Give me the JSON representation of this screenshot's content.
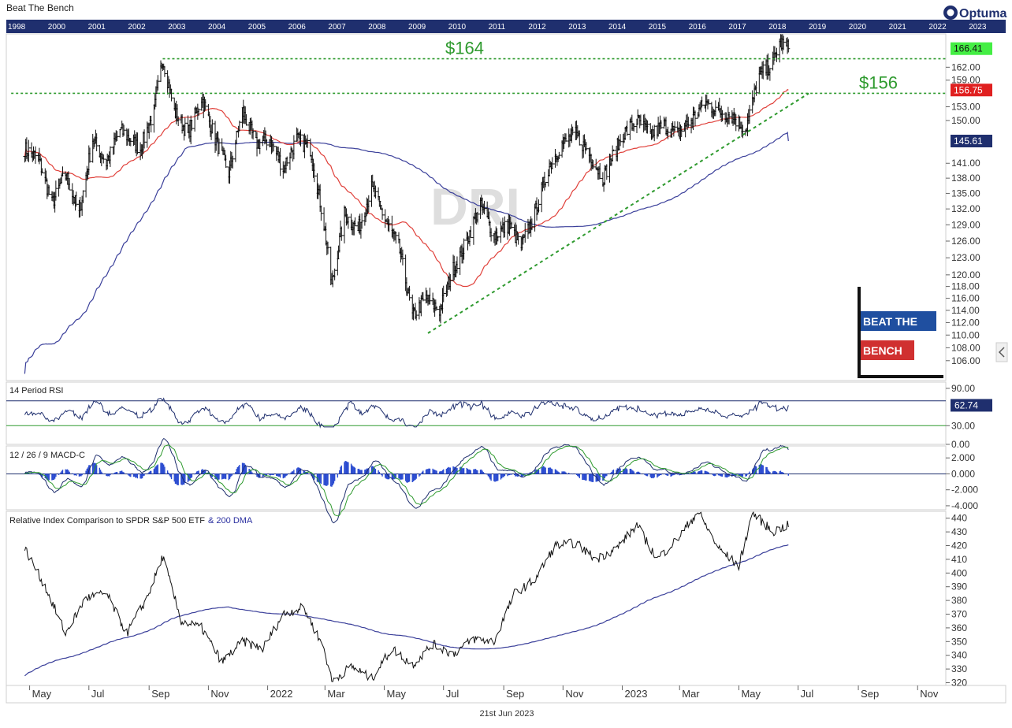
{
  "header": {
    "title": "Beat The Bench",
    "logo_text": "Optuma",
    "date_label": "21st Jun 2023"
  },
  "timeline": {
    "years": [
      "1998",
      "2000",
      "2001",
      "2002",
      "2003",
      "2004",
      "2005",
      "2006",
      "2007",
      "2008",
      "2009",
      "2010",
      "2011",
      "2012",
      "2013",
      "2014",
      "2015",
      "2016",
      "2017",
      "2018",
      "2019",
      "2020",
      "2021",
      "2022",
      "2023"
    ]
  },
  "watermark": {
    "symbol": "DRI",
    "badge_line1": "BEAT THE",
    "badge_line2": "BENCH"
  },
  "colors": {
    "navy": "#1f2f6e",
    "price": "#111111",
    "ma50": "#e0403a",
    "ma200": "#3a3f9a",
    "support": "#2e9a2e",
    "last_price_tag": "#44ee44",
    "ma50_tag": "#e02020",
    "ma200_tag": "#1f2f6e",
    "macd_signal": "#2e9a2e",
    "hist": "#2a4bd0"
  },
  "chart_data": [
    {
      "type": "candlestick",
      "title": "DRI",
      "x_labels": [
        "May",
        "Jul",
        "Sep",
        "Nov",
        "2022",
        "Mar",
        "May",
        "Jul",
        "Sep",
        "Nov",
        "2023",
        "Mar",
        "May",
        "Jul",
        "Sep",
        "Nov"
      ],
      "y_ticks": [
        106,
        108,
        110,
        112,
        114,
        116,
        118,
        120,
        123,
        126,
        129,
        132,
        135,
        138,
        141,
        145.61,
        150,
        153,
        156.75,
        159,
        162,
        166.41
      ],
      "ylim": [
        103,
        170
      ],
      "y_scale": "log",
      "anchors": [
        {
          "date": "2021-04-26",
          "close": 144
        },
        {
          "date": "2021-05-10",
          "close": 142
        },
        {
          "date": "2021-05-24",
          "close": 133
        },
        {
          "date": "2021-06-07",
          "close": 139
        },
        {
          "date": "2021-06-21",
          "close": 131
        },
        {
          "date": "2021-07-05",
          "close": 146
        },
        {
          "date": "2021-07-19",
          "close": 141
        },
        {
          "date": "2021-08-02",
          "close": 148
        },
        {
          "date": "2021-08-23",
          "close": 144
        },
        {
          "date": "2021-09-06",
          "close": 152
        },
        {
          "date": "2021-09-15",
          "close": 164
        },
        {
          "date": "2021-09-27",
          "close": 152
        },
        {
          "date": "2021-10-11",
          "close": 147
        },
        {
          "date": "2021-10-25",
          "close": 155
        },
        {
          "date": "2021-11-08",
          "close": 146
        },
        {
          "date": "2021-11-22",
          "close": 139
        },
        {
          "date": "2021-12-06",
          "close": 152
        },
        {
          "date": "2021-12-20",
          "close": 145
        },
        {
          "date": "2022-01-03",
          "close": 146
        },
        {
          "date": "2022-01-17",
          "close": 140
        },
        {
          "date": "2022-01-31",
          "close": 146
        },
        {
          "date": "2022-02-14",
          "close": 144
        },
        {
          "date": "2022-02-28",
          "close": 129
        },
        {
          "date": "2022-03-08",
          "close": 118
        },
        {
          "date": "2022-03-21",
          "close": 131
        },
        {
          "date": "2022-04-04",
          "close": 128
        },
        {
          "date": "2022-04-18",
          "close": 136
        },
        {
          "date": "2022-05-02",
          "close": 130
        },
        {
          "date": "2022-05-16",
          "close": 125
        },
        {
          "date": "2022-05-30",
          "close": 113
        },
        {
          "date": "2022-06-13",
          "close": 116
        },
        {
          "date": "2022-06-27",
          "close": 114
        },
        {
          "date": "2022-07-11",
          "close": 121
        },
        {
          "date": "2022-07-25",
          "close": 126
        },
        {
          "date": "2022-08-08",
          "close": 133
        },
        {
          "date": "2022-08-22",
          "close": 127
        },
        {
          "date": "2022-09-06",
          "close": 129
        },
        {
          "date": "2022-09-19",
          "close": 125
        },
        {
          "date": "2022-10-03",
          "close": 131
        },
        {
          "date": "2022-10-17",
          "close": 140
        },
        {
          "date": "2022-10-31",
          "close": 145
        },
        {
          "date": "2022-11-14",
          "close": 147
        },
        {
          "date": "2022-11-28",
          "close": 143
        },
        {
          "date": "2022-12-12",
          "close": 138
        },
        {
          "date": "2023-01-02",
          "close": 147
        },
        {
          "date": "2023-01-16",
          "close": 150
        },
        {
          "date": "2023-01-30",
          "close": 147
        },
        {
          "date": "2023-02-13",
          "close": 149
        },
        {
          "date": "2023-02-27",
          "close": 147
        },
        {
          "date": "2023-03-13",
          "close": 150
        },
        {
          "date": "2023-03-27",
          "close": 154
        },
        {
          "date": "2023-04-10",
          "close": 152
        },
        {
          "date": "2023-04-24",
          "close": 151
        },
        {
          "date": "2023-05-08",
          "close": 148
        },
        {
          "date": "2023-05-22",
          "close": 160
        },
        {
          "date": "2023-06-05",
          "close": 163
        },
        {
          "date": "2023-06-12",
          "close": 168
        },
        {
          "date": "2023-06-21",
          "close": 166.41
        }
      ],
      "last_price": 166.41,
      "ma50": {
        "label": "156.75",
        "value": 156.75
      },
      "ma200": {
        "label": "145.61",
        "value": 145.61
      },
      "levels": [
        {
          "label": "$164",
          "value": 164,
          "from": "2021-09-15"
        },
        {
          "label": "$156",
          "value": 156,
          "from": "2021-04-12"
        }
      ],
      "trendline": {
        "from_date": "2022-06-15",
        "from_value": 110.3,
        "to_date": "2023-07-12",
        "to_value": 156.0
      }
    },
    {
      "type": "line",
      "title": "14 Period RSI",
      "y_ticks": [
        90,
        30,
        0
      ],
      "ylim": [
        0,
        100
      ],
      "bands": [
        70,
        30
      ],
      "last_value": 62.74,
      "last_label": "62.74"
    },
    {
      "type": "bar",
      "title": "12 / 26 / 9 MACD-C",
      "y_ticks": [
        2,
        0,
        -2,
        -4
      ],
      "y_tick_labels": [
        "2.000",
        "0.000",
        "-2.000",
        "-4.000"
      ],
      "ylim": [
        -4.5,
        3.5
      ]
    },
    {
      "type": "line",
      "title": "Relative Index Comparison to SPDR S&P 500 ETF",
      "title_suffix": "& 200 DMA",
      "y_ticks": [
        320,
        330,
        340,
        350,
        360,
        370,
        380,
        390,
        400,
        410,
        420,
        430,
        440
      ],
      "ylim": [
        318,
        445
      ],
      "anchors": [
        {
          "date": "2021-04-26",
          "value": 418
        },
        {
          "date": "2021-05-17",
          "value": 390
        },
        {
          "date": "2021-06-07",
          "value": 356
        },
        {
          "date": "2021-06-28",
          "value": 382
        },
        {
          "date": "2021-07-19",
          "value": 385
        },
        {
          "date": "2021-08-09",
          "value": 356
        },
        {
          "date": "2021-08-30",
          "value": 382
        },
        {
          "date": "2021-09-15",
          "value": 412
        },
        {
          "date": "2021-10-04",
          "value": 365
        },
        {
          "date": "2021-10-25",
          "value": 360
        },
        {
          "date": "2021-11-15",
          "value": 335
        },
        {
          "date": "2021-12-06",
          "value": 350
        },
        {
          "date": "2021-12-27",
          "value": 345
        },
        {
          "date": "2022-01-17",
          "value": 370
        },
        {
          "date": "2022-02-07",
          "value": 375
        },
        {
          "date": "2022-02-28",
          "value": 345
        },
        {
          "date": "2022-03-08",
          "value": 321
        },
        {
          "date": "2022-03-28",
          "value": 332
        },
        {
          "date": "2022-04-18",
          "value": 323
        },
        {
          "date": "2022-05-09",
          "value": 345
        },
        {
          "date": "2022-05-30",
          "value": 333
        },
        {
          "date": "2022-06-20",
          "value": 348
        },
        {
          "date": "2022-07-11",
          "value": 341
        },
        {
          "date": "2022-08-01",
          "value": 352
        },
        {
          "date": "2022-08-22",
          "value": 350
        },
        {
          "date": "2022-09-12",
          "value": 385
        },
        {
          "date": "2022-10-03",
          "value": 395
        },
        {
          "date": "2022-10-24",
          "value": 420
        },
        {
          "date": "2022-11-14",
          "value": 422
        },
        {
          "date": "2022-12-05",
          "value": 410
        },
        {
          "date": "2022-12-26",
          "value": 418
        },
        {
          "date": "2023-01-16",
          "value": 435
        },
        {
          "date": "2023-02-06",
          "value": 410
        },
        {
          "date": "2023-02-27",
          "value": 425
        },
        {
          "date": "2023-03-20",
          "value": 445
        },
        {
          "date": "2023-04-10",
          "value": 418
        },
        {
          "date": "2023-05-01",
          "value": 405
        },
        {
          "date": "2023-05-15",
          "value": 444
        },
        {
          "date": "2023-06-05",
          "value": 430
        },
        {
          "date": "2023-06-21",
          "value": 435
        }
      ]
    }
  ]
}
